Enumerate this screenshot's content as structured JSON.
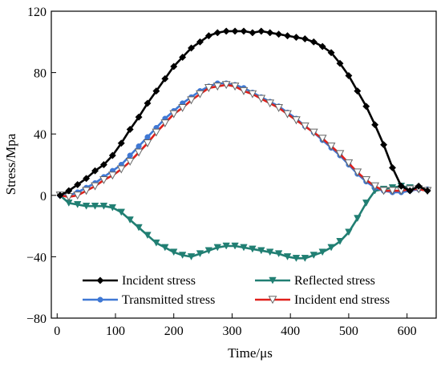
{
  "chart_data": {
    "type": "line",
    "title": "",
    "xlabel": "Time/μs",
    "ylabel": "Stress/Mpa",
    "xlim": [
      -10,
      650
    ],
    "ylim": [
      -80,
      120
    ],
    "xticks": [
      0,
      100,
      200,
      300,
      400,
      500,
      600
    ],
    "yticks": [
      -80,
      -40,
      0,
      40,
      80,
      120
    ],
    "ytick_labels": [
      "−80",
      "−40",
      "0",
      "40",
      "80",
      "120"
    ],
    "grid": false,
    "legend_position": "bottom-center",
    "series": [
      {
        "name": "Incident stress",
        "color": "#000000",
        "marker": "diamond",
        "x": [
          5,
          20,
          35,
          50,
          65,
          80,
          95,
          110,
          125,
          140,
          155,
          170,
          185,
          200,
          215,
          230,
          245,
          260,
          275,
          290,
          305,
          320,
          335,
          350,
          365,
          380,
          395,
          410,
          425,
          440,
          455,
          470,
          485,
          500,
          515,
          530,
          545,
          560,
          575,
          590,
          605,
          620,
          635
        ],
        "y": [
          0,
          3,
          7,
          11,
          16,
          20,
          26,
          34,
          43,
          51,
          60,
          68,
          76,
          84,
          90,
          96,
          100,
          104,
          106,
          107,
          107,
          107,
          106,
          107,
          106,
          105,
          104,
          103,
          102,
          100,
          97,
          93,
          86,
          78,
          68,
          58,
          46,
          33,
          18,
          6,
          3,
          6,
          3
        ]
      },
      {
        "name": "Reflected stress",
        "color": "#217f73",
        "marker": "triangle-down",
        "x": [
          5,
          20,
          35,
          50,
          65,
          80,
          95,
          110,
          125,
          140,
          155,
          170,
          185,
          200,
          215,
          230,
          245,
          260,
          275,
          290,
          305,
          320,
          335,
          350,
          365,
          380,
          395,
          410,
          425,
          440,
          455,
          470,
          485,
          500,
          515,
          530,
          545,
          560,
          575,
          590,
          605,
          620,
          635
        ],
        "y": [
          0,
          -5,
          -6,
          -7,
          -7,
          -7,
          -8,
          -11,
          -16,
          -21,
          -26,
          -31,
          -34,
          -37,
          -39,
          -40,
          -38,
          -36,
          -34,
          -33,
          -33,
          -34,
          -35,
          -36,
          -37,
          -38,
          -40,
          -41,
          -41,
          -39,
          -37,
          -34,
          -30,
          -24,
          -15,
          -5,
          3,
          4,
          5,
          6,
          5,
          4,
          3
        ]
      },
      {
        "name": "Transmitted stress",
        "color": "#3f78d4",
        "marker": "circle",
        "x": [
          5,
          20,
          35,
          50,
          65,
          80,
          95,
          110,
          125,
          140,
          155,
          170,
          185,
          200,
          215,
          230,
          245,
          260,
          275,
          290,
          305,
          320,
          335,
          350,
          365,
          380,
          395,
          410,
          425,
          440,
          455,
          470,
          485,
          500,
          515,
          530,
          545,
          560,
          575,
          590,
          605,
          620,
          635
        ],
        "y": [
          0,
          0,
          2,
          5,
          8,
          12,
          16,
          20,
          26,
          32,
          38,
          44,
          50,
          55,
          60,
          64,
          68,
          71,
          73,
          73,
          72,
          70,
          67,
          64,
          61,
          58,
          54,
          50,
          45,
          41,
          36,
          31,
          26,
          20,
          14,
          9,
          5,
          3,
          2,
          2,
          3,
          4,
          4
        ]
      },
      {
        "name": "Incident end stress",
        "color": "#e0201b",
        "marker": "triangle-down-open",
        "x": [
          5,
          20,
          35,
          50,
          65,
          80,
          95,
          110,
          125,
          140,
          155,
          170,
          185,
          200,
          215,
          230,
          245,
          260,
          275,
          290,
          305,
          320,
          335,
          350,
          365,
          380,
          395,
          410,
          425,
          440,
          455,
          470,
          485,
          500,
          515,
          530,
          545,
          560,
          575,
          590,
          605,
          620,
          635
        ],
        "y": [
          0,
          -1,
          0,
          3,
          6,
          10,
          13,
          17,
          22,
          28,
          34,
          41,
          47,
          53,
          57,
          62,
          66,
          70,
          71,
          72,
          71,
          68,
          66,
          63,
          60,
          57,
          53,
          49,
          45,
          41,
          37,
          32,
          27,
          21,
          15,
          10,
          6,
          3,
          3,
          3,
          4,
          4,
          3
        ]
      }
    ]
  }
}
